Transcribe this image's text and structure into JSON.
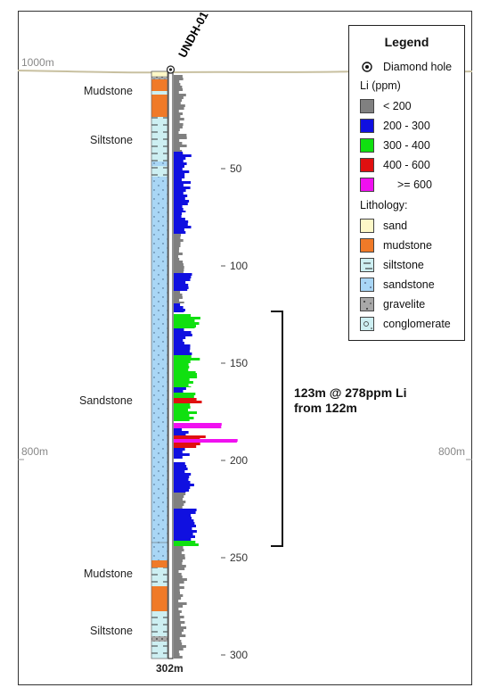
{
  "hole": {
    "name": "UNDH-01",
    "total_depth_label": "302m"
  },
  "elevations": {
    "top_left": "1000m",
    "mid_left": "800m",
    "mid_right": "800m"
  },
  "lithology_labels": {
    "mudstone_top": "Mudstone",
    "siltstone_top": "Siltstone",
    "sandstone": "Sandstone",
    "mudstone_bottom": "Mudstone",
    "siltstone_bottom": "Siltstone"
  },
  "depth_ticks": [
    "50",
    "100",
    "150",
    "200",
    "250",
    "300"
  ],
  "intercept": {
    "line1": "123m @ 278ppm Li",
    "line2": "from 122m"
  },
  "legend": {
    "title": "Legend",
    "diamond_hole": "Diamond hole",
    "li_header": "Li (ppm)",
    "li_classes": [
      {
        "label": "< 200",
        "color": "#808080"
      },
      {
        "label": "200 - 300",
        "color": "#1010e0"
      },
      {
        "label": "300 - 400",
        "color": "#10e010"
      },
      {
        "label": "400 - 600",
        "color": "#e01010"
      },
      {
        "label": ">= 600",
        "color": "#f010f0"
      }
    ],
    "lithology_header": "Lithology:",
    "lithologies": [
      {
        "label": "sand",
        "color": "#fdf8c8"
      },
      {
        "label": "mudstone",
        "color": "#f07a28"
      },
      {
        "label": "siltstone",
        "color": "#cdeff2"
      },
      {
        "label": "sandstone",
        "color": "#a9d6f5"
      },
      {
        "label": "gravelite",
        "color": "#a8a8a8"
      },
      {
        "label": "conglomerate",
        "color": "#cdeff2"
      }
    ]
  }
}
